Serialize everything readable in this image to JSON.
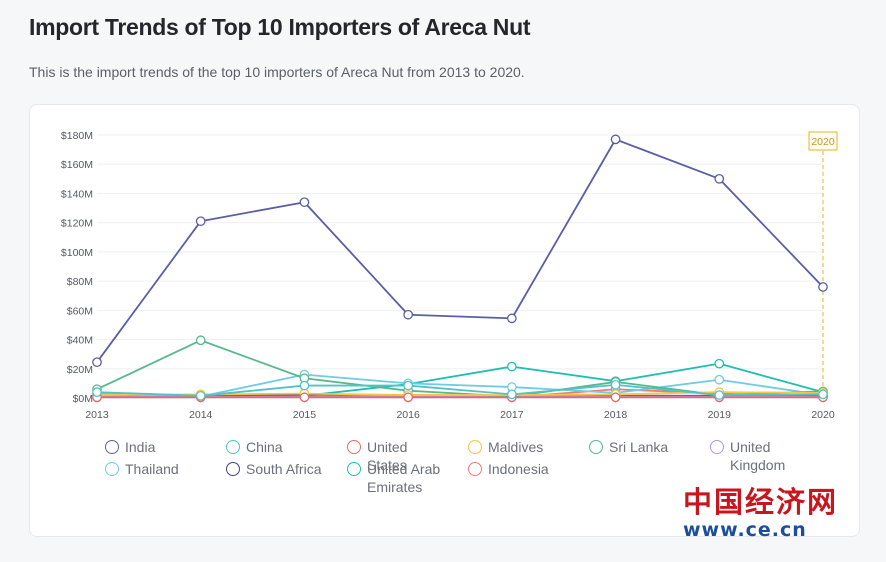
{
  "page": {
    "title": "Import Trends of Top 10 Importers of Areca Nut",
    "subtitle": "This is the import trends of the top 10 importers of Areca Nut from 2013 to 2020."
  },
  "watermark": {
    "text_cn": "中国经济网",
    "url": "www.ce.cn"
  },
  "chart_data": {
    "type": "line",
    "x": [
      "2013",
      "2014",
      "2015",
      "2016",
      "2017",
      "2018",
      "2019",
      "2020"
    ],
    "ylim": [
      0,
      180000000
    ],
    "y_ticks": [
      {
        "value": 0,
        "label": "$0M"
      },
      {
        "value": 20000000,
        "label": "$20M"
      },
      {
        "value": 40000000,
        "label": "$40M"
      },
      {
        "value": 60000000,
        "label": "$60M"
      },
      {
        "value": 80000000,
        "label": "$80M"
      },
      {
        "value": 100000000,
        "label": "$100M"
      },
      {
        "value": 120000000,
        "label": "$120M"
      },
      {
        "value": 140000000,
        "label": "$140M"
      },
      {
        "value": 160000000,
        "label": "$160M"
      },
      {
        "value": 180000000,
        "label": "$180M"
      }
    ],
    "grid": true,
    "legend_position": "bottom",
    "highlight": {
      "x": "2020",
      "label": "2020",
      "color": "#e6b422"
    },
    "series": [
      {
        "name": "India",
        "color": "#5b5ea6",
        "values": [
          24500000,
          121000000,
          134000000,
          57000000,
          54500000,
          177000000,
          150000000,
          76000000
        ]
      },
      {
        "name": "China",
        "color": "#4ec3c9",
        "values": [
          4000000,
          1500000,
          8500000,
          8500000,
          2500000,
          9000000,
          2000000,
          2500000
        ]
      },
      {
        "name": "United\nStates",
        "color": "#e36b6b",
        "values": [
          500000,
          500000,
          500000,
          500000,
          500000,
          500000,
          500000,
          500000
        ]
      },
      {
        "name": "Maldives",
        "color": "#f2c744",
        "values": [
          2000000,
          2500000,
          3000000,
          2000000,
          2000000,
          2500000,
          4000000,
          3500000
        ]
      },
      {
        "name": "Sri Lanka",
        "color": "#58b88c",
        "values": [
          6000000,
          39500000,
          13500000,
          5000000,
          1000000,
          11000000,
          2000000,
          4500000
        ]
      },
      {
        "name": "United\nKingdom",
        "color": "#b495e0",
        "values": [
          1000000,
          1000000,
          1000000,
          1000000,
          1000000,
          1000000,
          1000000,
          1000000
        ]
      },
      {
        "name": "Thailand",
        "color": "#6fcbe8",
        "values": [
          3000000,
          1000000,
          16000000,
          10000000,
          7500000,
          3500000,
          12500000,
          2000000
        ]
      },
      {
        "name": "South Africa",
        "color": "#4b3f86",
        "values": [
          2000000,
          1500000,
          2500000,
          2000000,
          1500000,
          1500000,
          1500000,
          1500000
        ]
      },
      {
        "name": "United Arab\nEmirates",
        "color": "#1fbeb3",
        "values": [
          1500000,
          1000000,
          1500000,
          9500000,
          21500000,
          11500000,
          23500000,
          4000000
        ]
      },
      {
        "name": "Indonesia",
        "color": "#f07878",
        "values": [
          500000,
          500000,
          1000000,
          500000,
          500000,
          6000000,
          3000000,
          1000000
        ]
      }
    ]
  }
}
